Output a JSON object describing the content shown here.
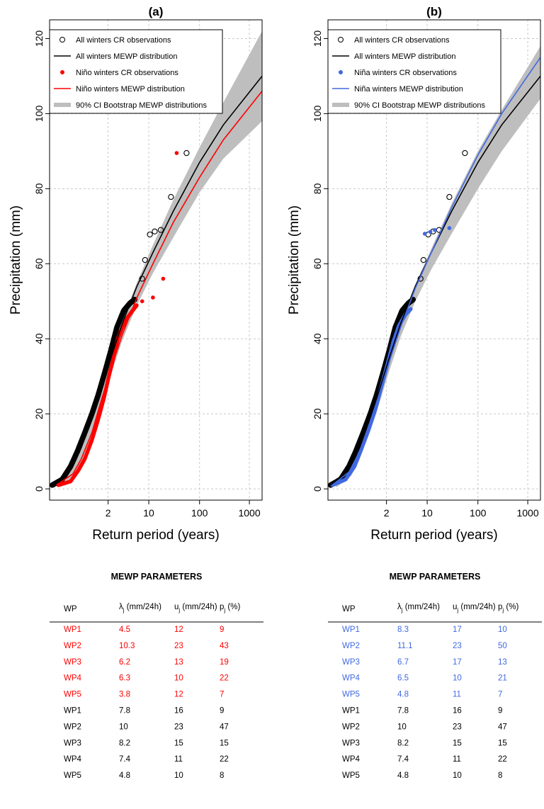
{
  "chart_data": [
    {
      "type": "scatter",
      "title": "(a)",
      "xlabel": "Return period (years)",
      "ylabel": "Precipitation (mm)",
      "x_scale": "gumbel reduced variate",
      "x_ticks": [
        2,
        10,
        100,
        1000
      ],
      "x_tick_labels": [
        "2",
        "10",
        "100",
        "1000"
      ],
      "y_ticks": [
        0,
        20,
        40,
        60,
        80,
        100,
        120
      ],
      "ylim": [
        -3,
        125
      ],
      "xlim_return_period": [
        1.00003,
        1800
      ],
      "grid": true,
      "legend_position": "top-left",
      "legend": [
        {
          "label": "All winters CR observations",
          "style": "open-circle",
          "color": "#000000"
        },
        {
          "label": "All winters MEWP distribution",
          "style": "line",
          "color": "#000000"
        },
        {
          "label": "Niño winters CR observations",
          "style": "filled-circle",
          "color": "#ff0000"
        },
        {
          "label": "Niño winters MEWP distribution",
          "style": "line",
          "color": "#ff0000"
        },
        {
          "label": "90% CI Bootstrap MEWP distributions",
          "style": "band",
          "color": "#bebebe"
        }
      ],
      "series": [
        {
          "name": "All winters CR observations",
          "marker": "open-circle",
          "color": "#000000",
          "curve_points": [
            [
              1.0001,
              1
            ],
            [
              1.003,
              2.5
            ],
            [
              1.02,
              6
            ],
            [
              1.06,
              10
            ],
            [
              1.15,
              15
            ],
            [
              1.3,
              20
            ],
            [
              1.5,
              25
            ],
            [
              1.8,
              31
            ],
            [
              2.2,
              37
            ],
            [
              2.7,
              43
            ],
            [
              3.5,
              47.5
            ],
            [
              4.5,
              49.5
            ],
            [
              5.5,
              50.5
            ]
          ],
          "extreme_points": [
            [
              7.5,
              56
            ],
            [
              8.5,
              61
            ],
            [
              10.5,
              67.8
            ],
            [
              13,
              68.6
            ],
            [
              17,
              69
            ],
            [
              27,
              77.8
            ],
            [
              55,
              89.5
            ]
          ]
        },
        {
          "name": "All winters MEWP distribution",
          "line": true,
          "color": "#000000",
          "points": [
            [
              1.0001,
              1
            ],
            [
              1.02,
              5
            ],
            [
              1.1,
              11
            ],
            [
              1.3,
              19
            ],
            [
              1.6,
              26
            ],
            [
              2.2,
              35
            ],
            [
              3.3,
              44
            ],
            [
              6,
              54
            ],
            [
              12,
              63
            ],
            [
              30,
              74
            ],
            [
              100,
              87
            ],
            [
              300,
              97
            ],
            [
              1800,
              110
            ]
          ]
        },
        {
          "name": "Niño winters CR observations",
          "marker": "filled-circle",
          "color": "#ff0000",
          "curve_points": [
            [
              1.001,
              1
            ],
            [
              1.02,
              2
            ],
            [
              1.07,
              5
            ],
            [
              1.15,
              8
            ],
            [
              1.3,
              13
            ],
            [
              1.5,
              18.5
            ],
            [
              1.75,
              24
            ],
            [
              2.05,
              30
            ],
            [
              2.4,
              35
            ],
            [
              2.8,
              40
            ],
            [
              3.3,
              43
            ],
            [
              4,
              45.5
            ],
            [
              5,
              47.5
            ],
            [
              6,
              49
            ]
          ],
          "extreme_points": [
            [
              7.5,
              50
            ],
            [
              12,
              51
            ],
            [
              19,
              56
            ],
            [
              35,
              89.5
            ]
          ]
        },
        {
          "name": "Niño winters MEWP distribution",
          "line": true,
          "color": "#ff0000",
          "points": [
            [
              1.0005,
              1
            ],
            [
              1.03,
              4
            ],
            [
              1.1,
              8
            ],
            [
              1.3,
              15
            ],
            [
              1.6,
              23
            ],
            [
              2.2,
              32
            ],
            [
              3.3,
              41
            ],
            [
              6,
              51
            ],
            [
              12,
              60
            ],
            [
              30,
              71
            ],
            [
              100,
              83
            ],
            [
              300,
              93
            ],
            [
              1800,
              106
            ]
          ]
        },
        {
          "name": "90% CI Bootstrap MEWP distributions",
          "band": true,
          "color": "#bebebe",
          "upper": [
            [
              1.0002,
              1.5
            ],
            [
              1.03,
              6
            ],
            [
              1.1,
              12
            ],
            [
              1.3,
              19.5
            ],
            [
              1.6,
              26.5
            ],
            [
              2.2,
              36
            ],
            [
              3.3,
              45
            ],
            [
              6,
              55
            ],
            [
              12,
              65
            ],
            [
              30,
              77
            ],
            [
              100,
              91
            ],
            [
              300,
              103
            ],
            [
              1800,
              122
            ]
          ],
          "lower": [
            [
              1.001,
              0.5
            ],
            [
              1.03,
              3
            ],
            [
              1.1,
              7
            ],
            [
              1.3,
              14
            ],
            [
              1.6,
              21.5
            ],
            [
              2.2,
              30.5
            ],
            [
              3.3,
              39.5
            ],
            [
              6,
              49
            ],
            [
              12,
              57.5
            ],
            [
              30,
              67
            ],
            [
              100,
              79
            ],
            [
              300,
              88
            ],
            [
              1800,
              98
            ]
          ]
        }
      ]
    },
    {
      "type": "scatter",
      "title": "(b)",
      "xlabel": "Return period (years)",
      "ylabel": "Precipitation (mm)",
      "x_scale": "gumbel reduced variate",
      "x_ticks": [
        2,
        10,
        100,
        1000
      ],
      "x_tick_labels": [
        "2",
        "10",
        "100",
        "1000"
      ],
      "y_ticks": [
        0,
        20,
        40,
        60,
        80,
        100,
        120
      ],
      "ylim": [
        -3,
        125
      ],
      "xlim_return_period": [
        1.00003,
        1800
      ],
      "grid": true,
      "legend_position": "top-left",
      "legend": [
        {
          "label": "All winters CR observations",
          "style": "open-circle",
          "color": "#000000"
        },
        {
          "label": "All winters MEWP distribution",
          "style": "line",
          "color": "#000000"
        },
        {
          "label": "Niña winters CR observations",
          "style": "filled-circle",
          "color": "#4169e1"
        },
        {
          "label": "Niña winters MEWP distribution",
          "style": "line",
          "color": "#4169e1"
        },
        {
          "label": "90% CI Bootstrap MEWP distributions",
          "style": "band",
          "color": "#bebebe"
        }
      ],
      "series": [
        {
          "name": "All winters CR observations",
          "marker": "open-circle",
          "color": "#000000",
          "curve_points": [
            [
              1.0001,
              1
            ],
            [
              1.003,
              2.5
            ],
            [
              1.02,
              6
            ],
            [
              1.06,
              10
            ],
            [
              1.15,
              15
            ],
            [
              1.3,
              20
            ],
            [
              1.5,
              25
            ],
            [
              1.8,
              31
            ],
            [
              2.2,
              37
            ],
            [
              2.7,
              43
            ],
            [
              3.5,
              47.5
            ],
            [
              4.5,
              49.5
            ],
            [
              5.5,
              50.5
            ]
          ],
          "extreme_points": [
            [
              7.5,
              56
            ],
            [
              8.5,
              61
            ],
            [
              10.5,
              67.8
            ],
            [
              13,
              68.6
            ],
            [
              17,
              69
            ],
            [
              27,
              77.8
            ],
            [
              55,
              89.5
            ]
          ]
        },
        {
          "name": "All winters MEWP distribution",
          "line": true,
          "color": "#000000",
          "points": [
            [
              1.0001,
              1
            ],
            [
              1.02,
              5
            ],
            [
              1.1,
              11
            ],
            [
              1.3,
              19
            ],
            [
              1.6,
              26
            ],
            [
              2.2,
              35
            ],
            [
              3.3,
              44
            ],
            [
              6,
              54
            ],
            [
              12,
              63
            ],
            [
              30,
              74
            ],
            [
              100,
              87
            ],
            [
              300,
              97
            ],
            [
              1800,
              110
            ]
          ]
        },
        {
          "name": "Niña winters CR observations",
          "marker": "filled-circle",
          "color": "#4169e1",
          "curve_points": [
            [
              1.0002,
              1
            ],
            [
              1.01,
              2.5
            ],
            [
              1.05,
              6
            ],
            [
              1.12,
              10.5
            ],
            [
              1.25,
              15.5
            ],
            [
              1.45,
              21
            ],
            [
              1.7,
              27
            ],
            [
              2.05,
              33
            ],
            [
              2.5,
              39
            ],
            [
              3.1,
              43.5
            ],
            [
              4,
              46.5
            ],
            [
              5,
              48
            ]
          ],
          "extreme_points": [
            [
              9,
              68
            ],
            [
              11.5,
              68.5
            ],
            [
              14,
              69
            ],
            [
              27,
              69.5
            ]
          ]
        },
        {
          "name": "Niña winters MEWP distribution",
          "line": true,
          "color": "#4169e1",
          "points": [
            [
              1.0002,
              1
            ],
            [
              1.02,
              4.5
            ],
            [
              1.1,
              10
            ],
            [
              1.3,
              18
            ],
            [
              1.6,
              25
            ],
            [
              2.2,
              34
            ],
            [
              3.3,
              43
            ],
            [
              6,
              53.5
            ],
            [
              12,
              63
            ],
            [
              30,
              75
            ],
            [
              100,
              89
            ],
            [
              300,
              100
            ],
            [
              1800,
              115
            ]
          ]
        },
        {
          "name": "90% CI Bootstrap MEWP distributions",
          "band": true,
          "color": "#bebebe",
          "upper": [
            [
              1.0001,
              1.5
            ],
            [
              1.02,
              5.5
            ],
            [
              1.1,
              11.5
            ],
            [
              1.3,
              19.5
            ],
            [
              1.6,
              26.5
            ],
            [
              2.2,
              35.5
            ],
            [
              3.3,
              44.5
            ],
            [
              6,
              54.5
            ],
            [
              12,
              64
            ],
            [
              30,
              76
            ],
            [
              100,
              90
            ],
            [
              300,
              101
            ],
            [
              1800,
              118
            ]
          ],
          "lower": [
            [
              1.001,
              0.5
            ],
            [
              1.03,
              3.5
            ],
            [
              1.1,
              8
            ],
            [
              1.3,
              15.5
            ],
            [
              1.6,
              22.5
            ],
            [
              2.2,
              31.5
            ],
            [
              3.3,
              40.5
            ],
            [
              6,
              50
            ],
            [
              12,
              58.5
            ],
            [
              30,
              68
            ],
            [
              100,
              80
            ],
            [
              300,
              90
            ],
            [
              1800,
              104
            ]
          ]
        }
      ]
    }
  ],
  "tables": [
    {
      "title": "MEWP PARAMETERS",
      "headers": {
        "wp": "WP",
        "lambda_sym": "λ",
        "lambda_sub": "j",
        "lambda_unit": " (mm/24h)",
        "u_sym": "u",
        "u_sub": "j",
        "u_unit": " (mm/24h)",
        "p_sym": "p",
        "p_sub": "j",
        "p_unit": " (%)"
      },
      "highlight_color": "#ff0000",
      "rows": [
        {
          "wp": "WP1",
          "lambda": "4.5",
          "u": "12",
          "p": "9",
          "highlight": true
        },
        {
          "wp": "WP2",
          "lambda": "10.3",
          "u": "23",
          "p": "43",
          "highlight": true
        },
        {
          "wp": "WP3",
          "lambda": "6.2",
          "u": "13",
          "p": "19",
          "highlight": true
        },
        {
          "wp": "WP4",
          "lambda": "6.3",
          "u": "10",
          "p": "22",
          "highlight": true
        },
        {
          "wp": "WP5",
          "lambda": "3.8",
          "u": "12",
          "p": "7",
          "highlight": true
        },
        {
          "wp": "WP1",
          "lambda": "7.8",
          "u": "16",
          "p": "9",
          "highlight": false
        },
        {
          "wp": "WP2",
          "lambda": "10",
          "u": "23",
          "p": "47",
          "highlight": false
        },
        {
          "wp": "WP3",
          "lambda": "8.2",
          "u": "15",
          "p": "15",
          "highlight": false
        },
        {
          "wp": "WP4",
          "lambda": "7.4",
          "u": "11",
          "p": "22",
          "highlight": false
        },
        {
          "wp": "WP5",
          "lambda": "4.8",
          "u": "10",
          "p": "8",
          "highlight": false
        }
      ]
    },
    {
      "title": "MEWP PARAMETERS",
      "headers": {
        "wp": "WP",
        "lambda_sym": "λ",
        "lambda_sub": "j",
        "lambda_unit": " (mm/24h)",
        "u_sym": "u",
        "u_sub": "j",
        "u_unit": " (mm/24h)",
        "p_sym": "p",
        "p_sub": "j",
        "p_unit": " (%)"
      },
      "highlight_color": "#4169e1",
      "rows": [
        {
          "wp": "WP1",
          "lambda": "8.3",
          "u": "17",
          "p": "10",
          "highlight": true
        },
        {
          "wp": "WP2",
          "lambda": "11.1",
          "u": "23",
          "p": "50",
          "highlight": true
        },
        {
          "wp": "WP3",
          "lambda": "6.7",
          "u": "17",
          "p": "13",
          "highlight": true
        },
        {
          "wp": "WP4",
          "lambda": "6.5",
          "u": "10",
          "p": "21",
          "highlight": true
        },
        {
          "wp": "WP5",
          "lambda": "4.8",
          "u": "11",
          "p": "7",
          "highlight": true
        },
        {
          "wp": "WP1",
          "lambda": "7.8",
          "u": "16",
          "p": "9",
          "highlight": false
        },
        {
          "wp": "WP2",
          "lambda": "10",
          "u": "23",
          "p": "47",
          "highlight": false
        },
        {
          "wp": "WP3",
          "lambda": "8.2",
          "u": "15",
          "p": "15",
          "highlight": false
        },
        {
          "wp": "WP4",
          "lambda": "7.4",
          "u": "11",
          "p": "22",
          "highlight": false
        },
        {
          "wp": "WP5",
          "lambda": "4.8",
          "u": "10",
          "p": "8",
          "highlight": false
        }
      ]
    }
  ]
}
